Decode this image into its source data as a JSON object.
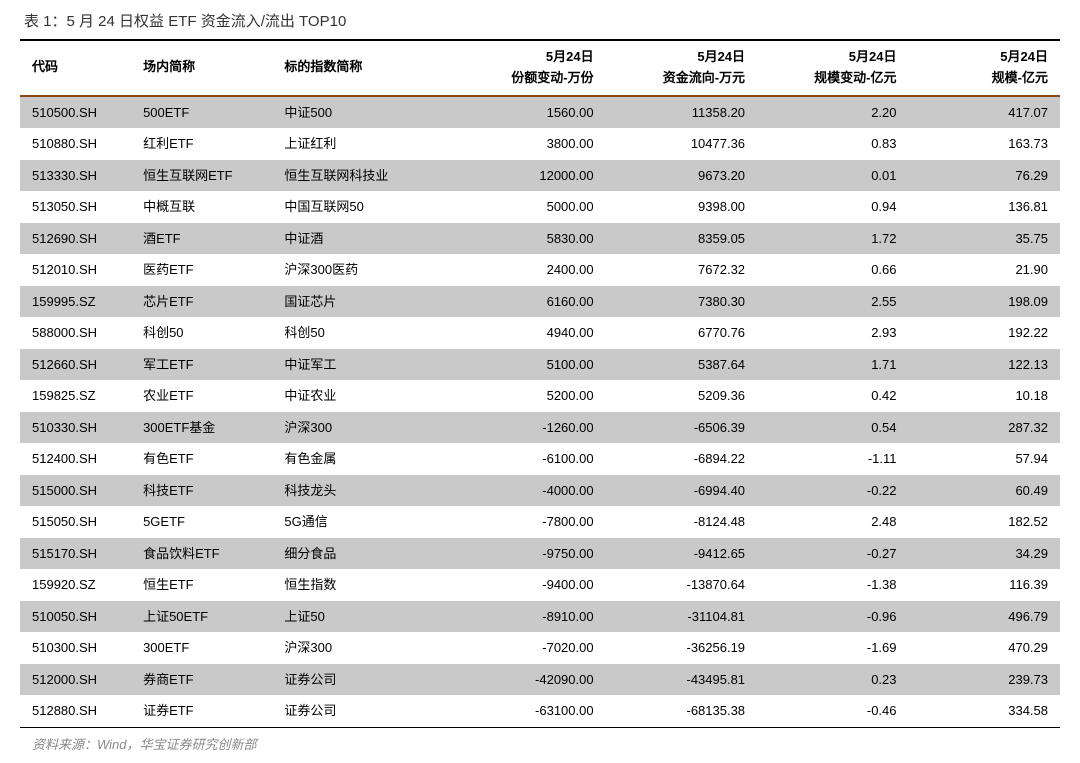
{
  "title": "表 1：5 月 24 日权益 ETF 资金流入/流出 TOP10",
  "footer": "资料来源：Wind，华宝证券研究创新部",
  "columns": [
    {
      "line1": "",
      "line2": "代码",
      "align": "left"
    },
    {
      "line1": "",
      "line2": "场内简称",
      "align": "left"
    },
    {
      "line1": "",
      "line2": "标的指数简称",
      "align": "left"
    },
    {
      "line1": "5月24日",
      "line2": "份额变动-万份",
      "align": "right"
    },
    {
      "line1": "5月24日",
      "line2": "资金流向-万元",
      "align": "right"
    },
    {
      "line1": "5月24日",
      "line2": "规模变动-亿元",
      "align": "right"
    },
    {
      "line1": "5月24日",
      "line2": "规模-亿元",
      "align": "right"
    }
  ],
  "rows": [
    [
      "510500.SH",
      "500ETF",
      "中证500",
      "1560.00",
      "11358.20",
      "2.20",
      "417.07"
    ],
    [
      "510880.SH",
      "红利ETF",
      "上证红利",
      "3800.00",
      "10477.36",
      "0.83",
      "163.73"
    ],
    [
      "513330.SH",
      "恒生互联网ETF",
      "恒生互联网科技业",
      "12000.00",
      "9673.20",
      "0.01",
      "76.29"
    ],
    [
      "513050.SH",
      "中概互联",
      "中国互联网50",
      "5000.00",
      "9398.00",
      "0.94",
      "136.81"
    ],
    [
      "512690.SH",
      "酒ETF",
      "中证酒",
      "5830.00",
      "8359.05",
      "1.72",
      "35.75"
    ],
    [
      "512010.SH",
      "医药ETF",
      "沪深300医药",
      "2400.00",
      "7672.32",
      "0.66",
      "21.90"
    ],
    [
      "159995.SZ",
      "芯片ETF",
      "国证芯片",
      "6160.00",
      "7380.30",
      "2.55",
      "198.09"
    ],
    [
      "588000.SH",
      "科创50",
      "科创50",
      "4940.00",
      "6770.76",
      "2.93",
      "192.22"
    ],
    [
      "512660.SH",
      "军工ETF",
      "中证军工",
      "5100.00",
      "5387.64",
      "1.71",
      "122.13"
    ],
    [
      "159825.SZ",
      "农业ETF",
      "中证农业",
      "5200.00",
      "5209.36",
      "0.42",
      "10.18"
    ],
    [
      "510330.SH",
      "300ETF基金",
      "沪深300",
      "-1260.00",
      "-6506.39",
      "0.54",
      "287.32"
    ],
    [
      "512400.SH",
      "有色ETF",
      "有色金属",
      "-6100.00",
      "-6894.22",
      "-1.11",
      "57.94"
    ],
    [
      "515000.SH",
      "科技ETF",
      "科技龙头",
      "-4000.00",
      "-6994.40",
      "-0.22",
      "60.49"
    ],
    [
      "515050.SH",
      "5GETF",
      "5G通信",
      "-7800.00",
      "-8124.48",
      "2.48",
      "182.52"
    ],
    [
      "515170.SH",
      "食品饮料ETF",
      "细分食品",
      "-9750.00",
      "-9412.65",
      "-0.27",
      "34.29"
    ],
    [
      "159920.SZ",
      "恒生ETF",
      "恒生指数",
      "-9400.00",
      "-13870.64",
      "-1.38",
      "116.39"
    ],
    [
      "510050.SH",
      "上证50ETF",
      "上证50",
      "-8910.00",
      "-31104.81",
      "-0.96",
      "496.79"
    ],
    [
      "510300.SH",
      "300ETF",
      "沪深300",
      "-7020.00",
      "-36256.19",
      "-1.69",
      "470.29"
    ],
    [
      "512000.SH",
      "券商ETF",
      "证券公司",
      "-42090.00",
      "-43495.81",
      "0.23",
      "239.73"
    ],
    [
      "512880.SH",
      "证券ETF",
      "证券公司",
      "-63100.00",
      "-68135.38",
      "-0.46",
      "334.58"
    ]
  ],
  "styling": {
    "row_odd_bg": "#c9c9c9",
    "row_even_bg": "#ffffff",
    "header_top_border": "#000000",
    "header_bottom_border": "#8b4513",
    "font_size_title": 15,
    "font_size_body": 13,
    "font_size_footer": 13,
    "footer_color": "#888888",
    "text_color": "#000000"
  }
}
